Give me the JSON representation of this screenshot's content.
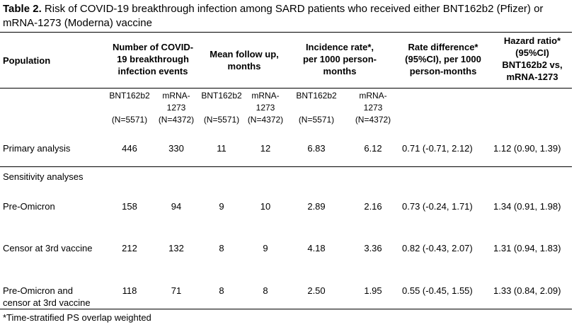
{
  "caption": {
    "label": "Table 2.",
    "text": " Risk of COVID-19 breakthrough infection among SARD patients who received either BNT162b2 (Pfizer) or mRNA-1273 (Moderna) vaccine"
  },
  "headers": {
    "population": "Population",
    "events": [
      "Number of COVID-",
      "19 breakthrough",
      "infection events"
    ],
    "follow_up": [
      "Mean follow up,",
      "months"
    ],
    "incidence": [
      "Incidence rate*,",
      "per 1000 person-",
      "months"
    ],
    "rate_diff": [
      "Rate difference*",
      "(95%CI), per 1000",
      "person-months"
    ],
    "hazard": [
      "Hazard ratio*",
      "(95%CI)",
      "BNT162b2 vs,",
      "mRNA-1273"
    ]
  },
  "subheaders": {
    "events_a": [
      "BNT162b2",
      "",
      "(N=5571)"
    ],
    "events_b": [
      "mRNA-",
      "1273",
      "(N=4372)"
    ],
    "follow_a": [
      "BNT162b2",
      "",
      "(N=5571)"
    ],
    "follow_b": [
      "mRNA-",
      "1273",
      "(N=4372)"
    ],
    "incid_a": [
      "BNT162b2",
      "",
      "(N=5571)"
    ],
    "incid_b": [
      "mRNA-",
      "1273",
      "(N=4372)"
    ]
  },
  "rows": [
    {
      "population": [
        "Primary analysis"
      ],
      "events_a": "446",
      "events_b": "330",
      "follow_a": "11",
      "follow_b": "12",
      "incid_a": "6.83",
      "incid_b": "6.12",
      "rate_diff": "0.71 (-0.71, 2.12)",
      "hazard": "1.12 (0.90, 1.39)"
    },
    {
      "population": [
        "Sensitivity analyses"
      ],
      "events_a": "",
      "events_b": "",
      "follow_a": "",
      "follow_b": "",
      "incid_a": "",
      "incid_b": "",
      "rate_diff": "",
      "hazard": ""
    },
    {
      "population": [
        "Pre-Omicron"
      ],
      "events_a": "158",
      "events_b": "94",
      "follow_a": "9",
      "follow_b": "10",
      "incid_a": "2.89",
      "incid_b": "2.16",
      "rate_diff": "0.73 (-0.24, 1.71)",
      "hazard": "1.34 (0.91, 1.98)"
    },
    {
      "population": [
        "Censor at 3rd vaccine"
      ],
      "events_a": "212",
      "events_b": "132",
      "follow_a": "8",
      "follow_b": "9",
      "incid_a": "4.18",
      "incid_b": "3.36",
      "rate_diff": "0.82 (-0.43, 2.07)",
      "hazard": "1.31 (0.94, 1.83)"
    },
    {
      "population": [
        "Pre-Omicron and",
        "censor at 3rd vaccine"
      ],
      "events_a": "118",
      "events_b": "71",
      "follow_a": "8",
      "follow_b": "8",
      "incid_a": "2.50",
      "incid_b": "1.95",
      "rate_diff": "0.55 (-0.45, 1.55)",
      "hazard": "1.33 (0.84, 2.09)"
    }
  ],
  "footnote": "*Time-stratified PS overlap weighted"
}
